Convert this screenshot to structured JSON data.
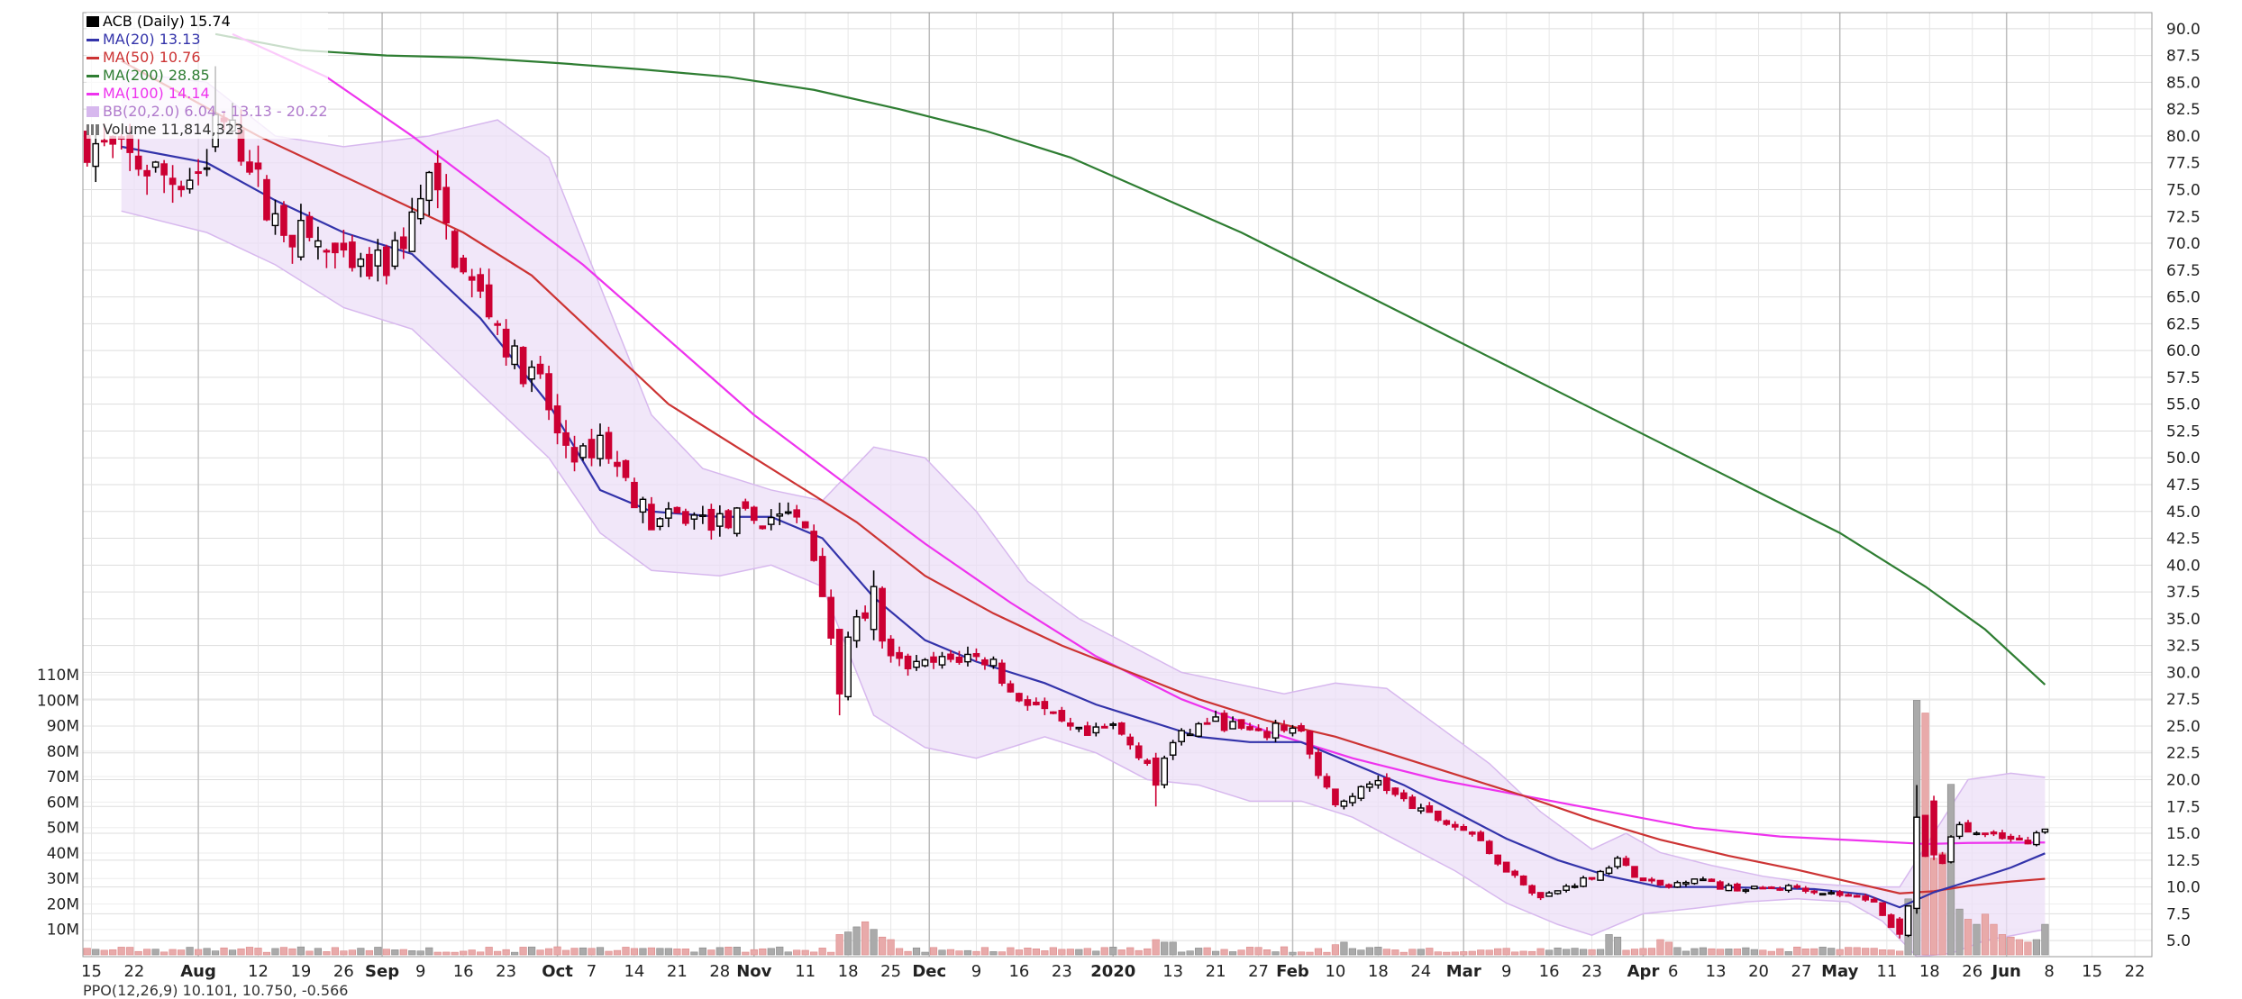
{
  "legend": {
    "ticker": "ACB (Daily)",
    "ticker_value": "15.74",
    "ma20_label": "MA(20)",
    "ma20_value": "13.13",
    "ma50_label": "MA(50)",
    "ma50_value": "10.76",
    "ma200_label": "MA(200)",
    "ma200_value": "28.85",
    "ma100_label": "MA(100)",
    "ma100_value": "14.14",
    "bb_label": "BB(20,2.0)",
    "bb_value": "6.04 - 13.13 - 20.22",
    "volume_label": "Volume",
    "volume_value": "11,814,323"
  },
  "bottom_strip": "PPO(12,26,9) 10.101, 10.750, -0.566",
  "colors": {
    "up": "#000000",
    "down": "#cc0033",
    "ma20": "#3333aa",
    "ma50": "#cc3333",
    "ma200": "#2e7d32",
    "ma100": "#ee33ee",
    "bb_fill": "#ecdff7",
    "bb_line": "#d7b8ee",
    "volume_up": "#aaaaaa",
    "volume_down": "#e8aaaa",
    "grid": "#dddddd"
  },
  "chart_data": {
    "type": "candlestick",
    "y_axis": {
      "ylim": [
        3.5,
        91.5
      ],
      "ticks": [
        "90.0",
        "87.5",
        "85.0",
        "82.5",
        "80.0",
        "77.5",
        "75.0",
        "72.5",
        "70.0",
        "67.5",
        "65.0",
        "62.5",
        "60.0",
        "57.5",
        "55.0",
        "52.5",
        "50.0",
        "47.5",
        "45.0",
        "42.5",
        "40.0",
        "37.5",
        "35.0",
        "32.5",
        "30.0",
        "27.5",
        "25.0",
        "22.5",
        "20.0",
        "17.5",
        "15.0",
        "12.5",
        "10.0",
        "7.5",
        "5.0"
      ]
    },
    "volume_axis": {
      "ticks": [
        "110M",
        "100M",
        "90M",
        "80M",
        "70M",
        "60M",
        "50M",
        "40M",
        "30M",
        "20M",
        "10M"
      ]
    },
    "x_labels": [
      {
        "label": "15",
        "bold": false,
        "i": 0.5
      },
      {
        "label": "22",
        "bold": false,
        "i": 5.5
      },
      {
        "label": "Aug",
        "bold": true,
        "i": 13
      },
      {
        "label": "12",
        "bold": false,
        "i": 20
      },
      {
        "label": "19",
        "bold": false,
        "i": 25
      },
      {
        "label": "26",
        "bold": false,
        "i": 30
      },
      {
        "label": "Sep",
        "bold": true,
        "i": 34.5
      },
      {
        "label": "9",
        "bold": false,
        "i": 39
      },
      {
        "label": "16",
        "bold": false,
        "i": 44
      },
      {
        "label": "23",
        "bold": false,
        "i": 49
      },
      {
        "label": "Oct",
        "bold": true,
        "i": 55
      },
      {
        "label": "7",
        "bold": false,
        "i": 59
      },
      {
        "label": "14",
        "bold": false,
        "i": 64
      },
      {
        "label": "21",
        "bold": false,
        "i": 69
      },
      {
        "label": "28",
        "bold": false,
        "i": 74
      },
      {
        "label": "Nov",
        "bold": true,
        "i": 78
      },
      {
        "label": "11",
        "bold": false,
        "i": 84
      },
      {
        "label": "18",
        "bold": false,
        "i": 89
      },
      {
        "label": "25",
        "bold": false,
        "i": 94
      },
      {
        "label": "Dec",
        "bold": true,
        "i": 98.5
      },
      {
        "label": "9",
        "bold": false,
        "i": 104
      },
      {
        "label": "16",
        "bold": false,
        "i": 109
      },
      {
        "label": "23",
        "bold": false,
        "i": 114
      },
      {
        "label": "2020",
        "bold": true,
        "i": 120
      },
      {
        "label": "13",
        "bold": false,
        "i": 127
      },
      {
        "label": "21",
        "bold": false,
        "i": 132
      },
      {
        "label": "27",
        "bold": false,
        "i": 137
      },
      {
        "label": "Feb",
        "bold": true,
        "i": 141
      },
      {
        "label": "10",
        "bold": false,
        "i": 146
      },
      {
        "label": "18",
        "bold": false,
        "i": 151
      },
      {
        "label": "24",
        "bold": false,
        "i": 156
      },
      {
        "label": "Mar",
        "bold": true,
        "i": 161
      },
      {
        "label": "9",
        "bold": false,
        "i": 166
      },
      {
        "label": "16",
        "bold": false,
        "i": 171
      },
      {
        "label": "23",
        "bold": false,
        "i": 176
      },
      {
        "label": "Apr",
        "bold": true,
        "i": 182
      },
      {
        "label": "6",
        "bold": false,
        "i": 185.5
      },
      {
        "label": "13",
        "bold": false,
        "i": 190.5
      },
      {
        "label": "20",
        "bold": false,
        "i": 195.5
      },
      {
        "label": "27",
        "bold": false,
        "i": 200.5
      },
      {
        "label": "May",
        "bold": true,
        "i": 205
      },
      {
        "label": "11",
        "bold": false,
        "i": 210.5
      },
      {
        "label": "18",
        "bold": false,
        "i": 215.5
      },
      {
        "label": "26",
        "bold": false,
        "i": 220.5
      },
      {
        "label": "Jun",
        "bold": true,
        "i": 224.5
      },
      {
        "label": "8",
        "bold": false,
        "i": 229.5
      },
      {
        "label": "15",
        "bold": false,
        "i": 234.5
      },
      {
        "label": "22",
        "bold": false,
        "i": 239.5
      }
    ],
    "vgrid": [
      13,
      34.5,
      55,
      78,
      98.5,
      120,
      141,
      161,
      182,
      205,
      224.5
    ],
    "x_slots": 242,
    "closes": [
      [
        0,
        79.5
      ],
      [
        10,
        76
      ],
      [
        14,
        77
      ],
      [
        16,
        81
      ],
      [
        19,
        78
      ],
      [
        21,
        73
      ],
      [
        24,
        71
      ],
      [
        27,
        70
      ],
      [
        31,
        67
      ],
      [
        35,
        68
      ],
      [
        38,
        72
      ],
      [
        40,
        76
      ],
      [
        42,
        71
      ],
      [
        44,
        67
      ],
      [
        47,
        64
      ],
      [
        50,
        59
      ],
      [
        53,
        57
      ],
      [
        55,
        52
      ],
      [
        58,
        50
      ],
      [
        60,
        52
      ],
      [
        62,
        49
      ],
      [
        66,
        44
      ],
      [
        70,
        44.5
      ],
      [
        74,
        44
      ],
      [
        77,
        44.5
      ],
      [
        79,
        44
      ],
      [
        81,
        45
      ],
      [
        84,
        43.5
      ],
      [
        86,
        38
      ],
      [
        88,
        29
      ],
      [
        90,
        36
      ],
      [
        92,
        35
      ],
      [
        94,
        31
      ],
      [
        97,
        30.5
      ],
      [
        100,
        31
      ],
      [
        103,
        31.5
      ],
      [
        106,
        31
      ],
      [
        108,
        28
      ],
      [
        111,
        27
      ],
      [
        114,
        25
      ],
      [
        117,
        24
      ],
      [
        120,
        25
      ],
      [
        123,
        22.5
      ],
      [
        125,
        21
      ],
      [
        128,
        24
      ],
      [
        131,
        25.5
      ],
      [
        134,
        25
      ],
      [
        137,
        24
      ],
      [
        140,
        25
      ],
      [
        142,
        24.5
      ],
      [
        144,
        20
      ],
      [
        146,
        18
      ],
      [
        149,
        19
      ],
      [
        151,
        20
      ],
      [
        153,
        18.5
      ],
      [
        156,
        17
      ],
      [
        159,
        16
      ],
      [
        162,
        15
      ],
      [
        164,
        13
      ],
      [
        167,
        11
      ],
      [
        170,
        9
      ],
      [
        173,
        10
      ],
      [
        176,
        11
      ],
      [
        179,
        12.5
      ],
      [
        182,
        10.5
      ],
      [
        185,
        10
      ],
      [
        188,
        11
      ],
      [
        191,
        10
      ],
      [
        194,
        9.8
      ],
      [
        197,
        9.9
      ],
      [
        200,
        10
      ],
      [
        203,
        9.5
      ],
      [
        206,
        9.2
      ],
      [
        209,
        8.8
      ],
      [
        211,
        6
      ],
      [
        212,
        5.5
      ],
      [
        213,
        8
      ],
      [
        214,
        14
      ],
      [
        215,
        13
      ],
      [
        216,
        16
      ],
      [
        217,
        12
      ],
      [
        218,
        15
      ],
      [
        219,
        15.5
      ],
      [
        221,
        15
      ],
      [
        224,
        14.5
      ],
      [
        227,
        14
      ],
      [
        229,
        15.74
      ]
    ],
    "anomalies": [
      {
        "i": 15,
        "open": 79,
        "close": 82,
        "high": 86.5,
        "low": 78.5
      },
      {
        "i": 88,
        "open": 34,
        "close": 28,
        "high": 34,
        "low": 26
      },
      {
        "i": 92,
        "open": 34,
        "close": 38,
        "high": 39.5,
        "low": 33
      },
      {
        "i": 125,
        "open": 22,
        "close": 19.5,
        "high": 22.5,
        "low": 17.5
      },
      {
        "i": 212,
        "open": 7,
        "close": 5.6,
        "high": 7.2,
        "low": 5.2
      },
      {
        "i": 214,
        "open": 8,
        "close": 16.5,
        "high": 19.5,
        "low": 7.5
      },
      {
        "i": 216,
        "open": 18,
        "close": 13,
        "high": 18.5,
        "low": 12.5
      }
    ],
    "ma20": [
      [
        4,
        79
      ],
      [
        14,
        77.5
      ],
      [
        22,
        74
      ],
      [
        30,
        71
      ],
      [
        38,
        69
      ],
      [
        46,
        63
      ],
      [
        54,
        55
      ],
      [
        60,
        47
      ],
      [
        66,
        45
      ],
      [
        74,
        44.5
      ],
      [
        80,
        44.5
      ],
      [
        86,
        42.5
      ],
      [
        92,
        37
      ],
      [
        98,
        33
      ],
      [
        104,
        31
      ],
      [
        112,
        29
      ],
      [
        118,
        27
      ],
      [
        124,
        25.5
      ],
      [
        130,
        24
      ],
      [
        136,
        23.5
      ],
      [
        142,
        23.5
      ],
      [
        148,
        21.5
      ],
      [
        154,
        19.5
      ],
      [
        160,
        17
      ],
      [
        166,
        14.5
      ],
      [
        172,
        12.5
      ],
      [
        178,
        11
      ],
      [
        184,
        10
      ],
      [
        190,
        10
      ],
      [
        196,
        9.9
      ],
      [
        202,
        9.8
      ],
      [
        208,
        9.3
      ],
      [
        212,
        8.1
      ],
      [
        216,
        9.5
      ],
      [
        220,
        10.5
      ],
      [
        225,
        11.8
      ],
      [
        229,
        13.13
      ]
    ],
    "ma50": [
      [
        4,
        87
      ],
      [
        12,
        83.5
      ],
      [
        20,
        80
      ],
      [
        28,
        77
      ],
      [
        36,
        74
      ],
      [
        44,
        71
      ],
      [
        52,
        67
      ],
      [
        60,
        61
      ],
      [
        68,
        55
      ],
      [
        76,
        51
      ],
      [
        84,
        47
      ],
      [
        90,
        44
      ],
      [
        98,
        39
      ],
      [
        106,
        35.5
      ],
      [
        114,
        32.5
      ],
      [
        122,
        30
      ],
      [
        130,
        27.5
      ],
      [
        138,
        25.5
      ],
      [
        146,
        24
      ],
      [
        152,
        22.5
      ],
      [
        160,
        20.5
      ],
      [
        168,
        18.5
      ],
      [
        176,
        16.3
      ],
      [
        184,
        14.4
      ],
      [
        192,
        12.9
      ],
      [
        200,
        11.6
      ],
      [
        206,
        10.5
      ],
      [
        212,
        9.4
      ],
      [
        216,
        9.6
      ],
      [
        220,
        10.1
      ],
      [
        225,
        10.5
      ],
      [
        229,
        10.76
      ]
    ],
    "ma100": [
      [
        17,
        89.5
      ],
      [
        28,
        85.5
      ],
      [
        38,
        80
      ],
      [
        48,
        74
      ],
      [
        58,
        68
      ],
      [
        68,
        61
      ],
      [
        78,
        54
      ],
      [
        88,
        48
      ],
      [
        98,
        42
      ],
      [
        108,
        36.5
      ],
      [
        118,
        31.5
      ],
      [
        128,
        27.5
      ],
      [
        138,
        24.5
      ],
      [
        148,
        22
      ],
      [
        158,
        20
      ],
      [
        168,
        18.5
      ],
      [
        178,
        17
      ],
      [
        188,
        15.5
      ],
      [
        198,
        14.7
      ],
      [
        208,
        14.3
      ],
      [
        215,
        14
      ],
      [
        220,
        14.1
      ],
      [
        229,
        14.14
      ]
    ],
    "ma200": [
      [
        15,
        89.5
      ],
      [
        25,
        88
      ],
      [
        35,
        87.5
      ],
      [
        45,
        87.3
      ],
      [
        55,
        86.8
      ],
      [
        65,
        86.2
      ],
      [
        75,
        85.5
      ],
      [
        85,
        84.3
      ],
      [
        95,
        82.5
      ],
      [
        105,
        80.5
      ],
      [
        115,
        78
      ],
      [
        125,
        74.5
      ],
      [
        135,
        71
      ],
      [
        145,
        67
      ],
      [
        155,
        63
      ],
      [
        165,
        59
      ],
      [
        175,
        55
      ],
      [
        185,
        51
      ],
      [
        195,
        47
      ],
      [
        205,
        43
      ],
      [
        215,
        38
      ],
      [
        222,
        34
      ],
      [
        229,
        28.85
      ]
    ],
    "bb_upper": [
      [
        4,
        86
      ],
      [
        14,
        85
      ],
      [
        22,
        80
      ],
      [
        30,
        79
      ],
      [
        40,
        80
      ],
      [
        48,
        81.5
      ],
      [
        54,
        78
      ],
      [
        60,
        66
      ],
      [
        66,
        54
      ],
      [
        72,
        49
      ],
      [
        80,
        47
      ],
      [
        86,
        46
      ],
      [
        92,
        51
      ],
      [
        98,
        50
      ],
      [
        104,
        45
      ],
      [
        110,
        38.5
      ],
      [
        116,
        35
      ],
      [
        122,
        32.5
      ],
      [
        128,
        30
      ],
      [
        134,
        29
      ],
      [
        140,
        28
      ],
      [
        146,
        29
      ],
      [
        152,
        28.5
      ],
      [
        158,
        25
      ],
      [
        164,
        21.5
      ],
      [
        170,
        17
      ],
      [
        176,
        13.5
      ],
      [
        180,
        15
      ],
      [
        184,
        13.2
      ],
      [
        190,
        12
      ],
      [
        196,
        11
      ],
      [
        202,
        10.3
      ],
      [
        208,
        10
      ],
      [
        212,
        10
      ],
      [
        216,
        15
      ],
      [
        220,
        20
      ],
      [
        225,
        20.6
      ],
      [
        229,
        20.22
      ]
    ],
    "bb_lower": [
      [
        4,
        73
      ],
      [
        14,
        71
      ],
      [
        22,
        68
      ],
      [
        30,
        64
      ],
      [
        38,
        62
      ],
      [
        46,
        56
      ],
      [
        54,
        50
      ],
      [
        60,
        43
      ],
      [
        66,
        39.5
      ],
      [
        74,
        39
      ],
      [
        80,
        40
      ],
      [
        86,
        38
      ],
      [
        92,
        26
      ],
      [
        98,
        23
      ],
      [
        104,
        22
      ],
      [
        112,
        24
      ],
      [
        118,
        22.5
      ],
      [
        124,
        20
      ],
      [
        130,
        19.5
      ],
      [
        136,
        18
      ],
      [
        142,
        18
      ],
      [
        148,
        16.5
      ],
      [
        154,
        14
      ],
      [
        160,
        11.5
      ],
      [
        166,
        8.5
      ],
      [
        172,
        6.5
      ],
      [
        176,
        5.5
      ],
      [
        182,
        7.5
      ],
      [
        188,
        8
      ],
      [
        194,
        8.6
      ],
      [
        200,
        8.9
      ],
      [
        206,
        8.6
      ],
      [
        210,
        6.8
      ],
      [
        214,
        3.5
      ],
      [
        218,
        3.8
      ],
      [
        222,
        5
      ],
      [
        229,
        6.04
      ]
    ],
    "volume_spikes": [
      {
        "i": 88,
        "v": 8
      },
      {
        "i": 89,
        "v": 9
      },
      {
        "i": 90,
        "v": 11
      },
      {
        "i": 91,
        "v": 13
      },
      {
        "i": 92,
        "v": 10
      },
      {
        "i": 93,
        "v": 7
      },
      {
        "i": 94,
        "v": 6
      },
      {
        "i": 125,
        "v": 6
      },
      {
        "i": 126,
        "v": 5
      },
      {
        "i": 127,
        "v": 5
      },
      {
        "i": 146,
        "v": 4
      },
      {
        "i": 147,
        "v": 5
      },
      {
        "i": 178,
        "v": 8
      },
      {
        "i": 179,
        "v": 7
      },
      {
        "i": 184,
        "v": 6
      },
      {
        "i": 185,
        "v": 5
      },
      {
        "i": 213,
        "v": 22
      },
      {
        "i": 214,
        "v": 100
      },
      {
        "i": 215,
        "v": 95
      },
      {
        "i": 216,
        "v": 38
      },
      {
        "i": 217,
        "v": 40
      },
      {
        "i": 218,
        "v": 67
      },
      {
        "i": 219,
        "v": 18
      },
      {
        "i": 220,
        "v": 14
      },
      {
        "i": 221,
        "v": 12
      },
      {
        "i": 222,
        "v": 16
      },
      {
        "i": 223,
        "v": 12
      },
      {
        "i": 224,
        "v": 8
      },
      {
        "i": 225,
        "v": 7
      },
      {
        "i": 226,
        "v": 6
      },
      {
        "i": 227,
        "v": 5
      },
      {
        "i": 228,
        "v": 6
      },
      {
        "i": 229,
        "v": 12
      }
    ]
  }
}
